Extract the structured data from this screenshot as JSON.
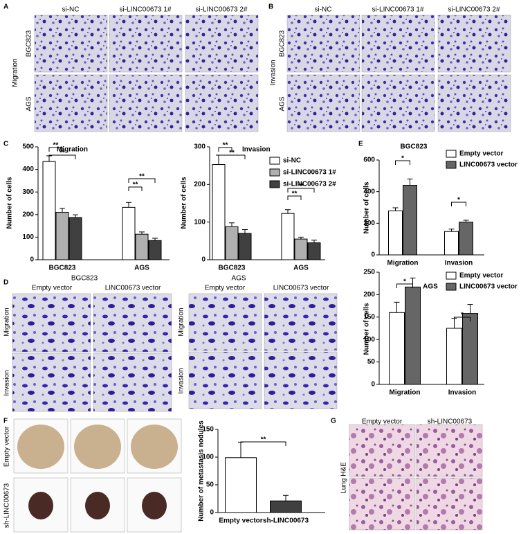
{
  "panels": {
    "A": {
      "letter": "A",
      "columns": [
        "si-NC",
        "si-LINC00673 1#",
        "si-LINC00673 2#"
      ],
      "rows": [
        "BGC823",
        "AGS"
      ],
      "group": "Migration"
    },
    "B": {
      "letter": "B",
      "columns": [
        "si-NC",
        "si-LINC00673 1#",
        "si-LINC00673 2#"
      ],
      "rows": [
        "BGC823",
        "AGS"
      ],
      "group": "Invasion"
    },
    "C": {
      "letter": "C"
    },
    "D": {
      "letter": "D",
      "left": {
        "title": "BGC823",
        "columns": [
          "Empty vector",
          "LINC00673 vector"
        ],
        "rows": [
          "Migration",
          "Invasion"
        ]
      },
      "right": {
        "title": "AGS",
        "columns": [
          "Empty vector",
          "LINC00673 vector"
        ],
        "rows": [
          "Migration",
          "Invasion"
        ]
      }
    },
    "E": {
      "letter": "E"
    },
    "F": {
      "letter": "F",
      "rows": [
        "Empty vector",
        "sh-LINC00673"
      ]
    },
    "G": {
      "letter": "G",
      "columns": [
        "Empty vector",
        "sh-LINC00673"
      ],
      "row": "Lung H&E"
    }
  },
  "chart_data": [
    {
      "type": "bar",
      "y_label": "Number of cells",
      "categories": [
        "BGC823",
        "AGS"
      ],
      "series": [
        {
          "color": "#ffffff",
          "values": [
            435,
            232
          ],
          "errors": [
            25,
            22
          ]
        },
        {
          "color": "#b0b0b0",
          "values": [
            210,
            113
          ],
          "errors": [
            18,
            10
          ]
        },
        {
          "color": "#404040",
          "values": [
            187,
            85
          ],
          "errors": [
            12,
            10
          ]
        }
      ],
      "ylim": [
        0,
        500
      ],
      "yticks": [
        0,
        100,
        200,
        300,
        400,
        500
      ],
      "annotations": [
        "Migration",
        "**",
        "**",
        "**",
        "**"
      ]
    },
    {
      "type": "bar",
      "y_label": "Number of cells",
      "categories": [
        "BGC823",
        "AGS"
      ],
      "series": [
        {
          "name": "si-NC",
          "color": "#ffffff",
          "values": [
            253,
            123
          ],
          "errors": [
            25,
            10
          ]
        },
        {
          "name": "si-LINC00673 1#",
          "color": "#b0b0b0",
          "values": [
            88,
            55
          ],
          "errors": [
            10,
            5
          ]
        },
        {
          "name": "si-LINC00673 2#",
          "color": "#404040",
          "values": [
            70,
            45
          ],
          "errors": [
            10,
            7
          ]
        }
      ],
      "ylim": [
        0,
        300
      ],
      "yticks": [
        0,
        100,
        200,
        300
      ],
      "legend": "top-right",
      "annotations": [
        "Invasion",
        "**",
        "**",
        "**",
        "**"
      ]
    },
    {
      "type": "bar",
      "title": "BGC823",
      "y_label": "Number of cells",
      "categories": [
        "Migration",
        "Invasion"
      ],
      "series": [
        {
          "name": "Empty vector",
          "color": "#ffffff",
          "values": [
            278,
            148
          ],
          "errors": [
            20,
            15
          ]
        },
        {
          "name": "LINC00673 vector",
          "color": "#666666",
          "values": [
            440,
            207
          ],
          "errors": [
            40,
            12
          ]
        }
      ],
      "ylim": [
        0,
        600
      ],
      "yticks": [
        0,
        200,
        400,
        600
      ],
      "legend": "top-right",
      "annotations": [
        "*",
        "*"
      ]
    },
    {
      "type": "bar",
      "title": "AGS",
      "y_label": "Number of cells",
      "categories": [
        "Migration",
        "Invasion"
      ],
      "series": [
        {
          "name": "Empty vector",
          "color": "#ffffff",
          "values": [
            160,
            125
          ],
          "errors": [
            23,
            22
          ]
        },
        {
          "name": "LINC00673 vector",
          "color": "#666666",
          "values": [
            217,
            158
          ],
          "errors": [
            20,
            20
          ]
        }
      ],
      "ylim": [
        0,
        250
      ],
      "yticks": [
        0,
        50,
        100,
        150,
        200,
        250
      ],
      "legend": "top-right",
      "annotations": [
        "*",
        "*"
      ]
    },
    {
      "type": "bar",
      "y_label": "Number of metastasis nodules",
      "categories": [
        "Empty vector",
        "sh-LINC00673"
      ],
      "values": [
        99,
        21
      ],
      "errors": [
        28,
        10
      ],
      "colors": [
        "#ffffff",
        "#404040"
      ],
      "ylim": [
        0,
        150
      ],
      "yticks": [
        0,
        50,
        100,
        150
      ],
      "annotations": [
        "**"
      ]
    }
  ]
}
